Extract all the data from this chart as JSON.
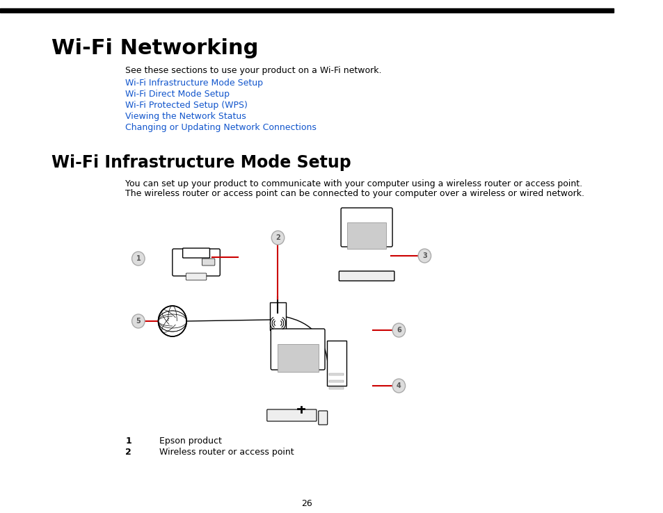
{
  "page_bg": "#ffffff",
  "top_bar_color": "#000000",
  "title1": "Wi-Fi Networking",
  "title1_size": 22,
  "title1_bold": true,
  "intro_text": "See these sections to use your product on a Wi-Fi network.",
  "intro_size": 9,
  "links": [
    "Wi-Fi Infrastructure Mode Setup",
    "Wi-Fi Direct Mode Setup",
    "Wi-Fi Protected Setup (WPS)",
    "Viewing the Network Status",
    "Changing or Updating Network Connections"
  ],
  "link_color": "#1155CC",
  "link_size": 9,
  "title2": "Wi-Fi Infrastructure Mode Setup",
  "title2_size": 17,
  "title2_bold": true,
  "body_text": "You can set up your product to communicate with your computer using a wireless router or access point.\nThe wireless router or access point can be connected to your computer over a wireless or wired network.",
  "body_size": 9,
  "list_items": [
    {
      "num": "1",
      "text": "Epson product"
    },
    {
      "num": "2",
      "text": "Wireless router or access point"
    }
  ],
  "list_size": 9,
  "page_num": "26",
  "red_line_color": "#cc0000",
  "diagram_label_color": "#888888"
}
